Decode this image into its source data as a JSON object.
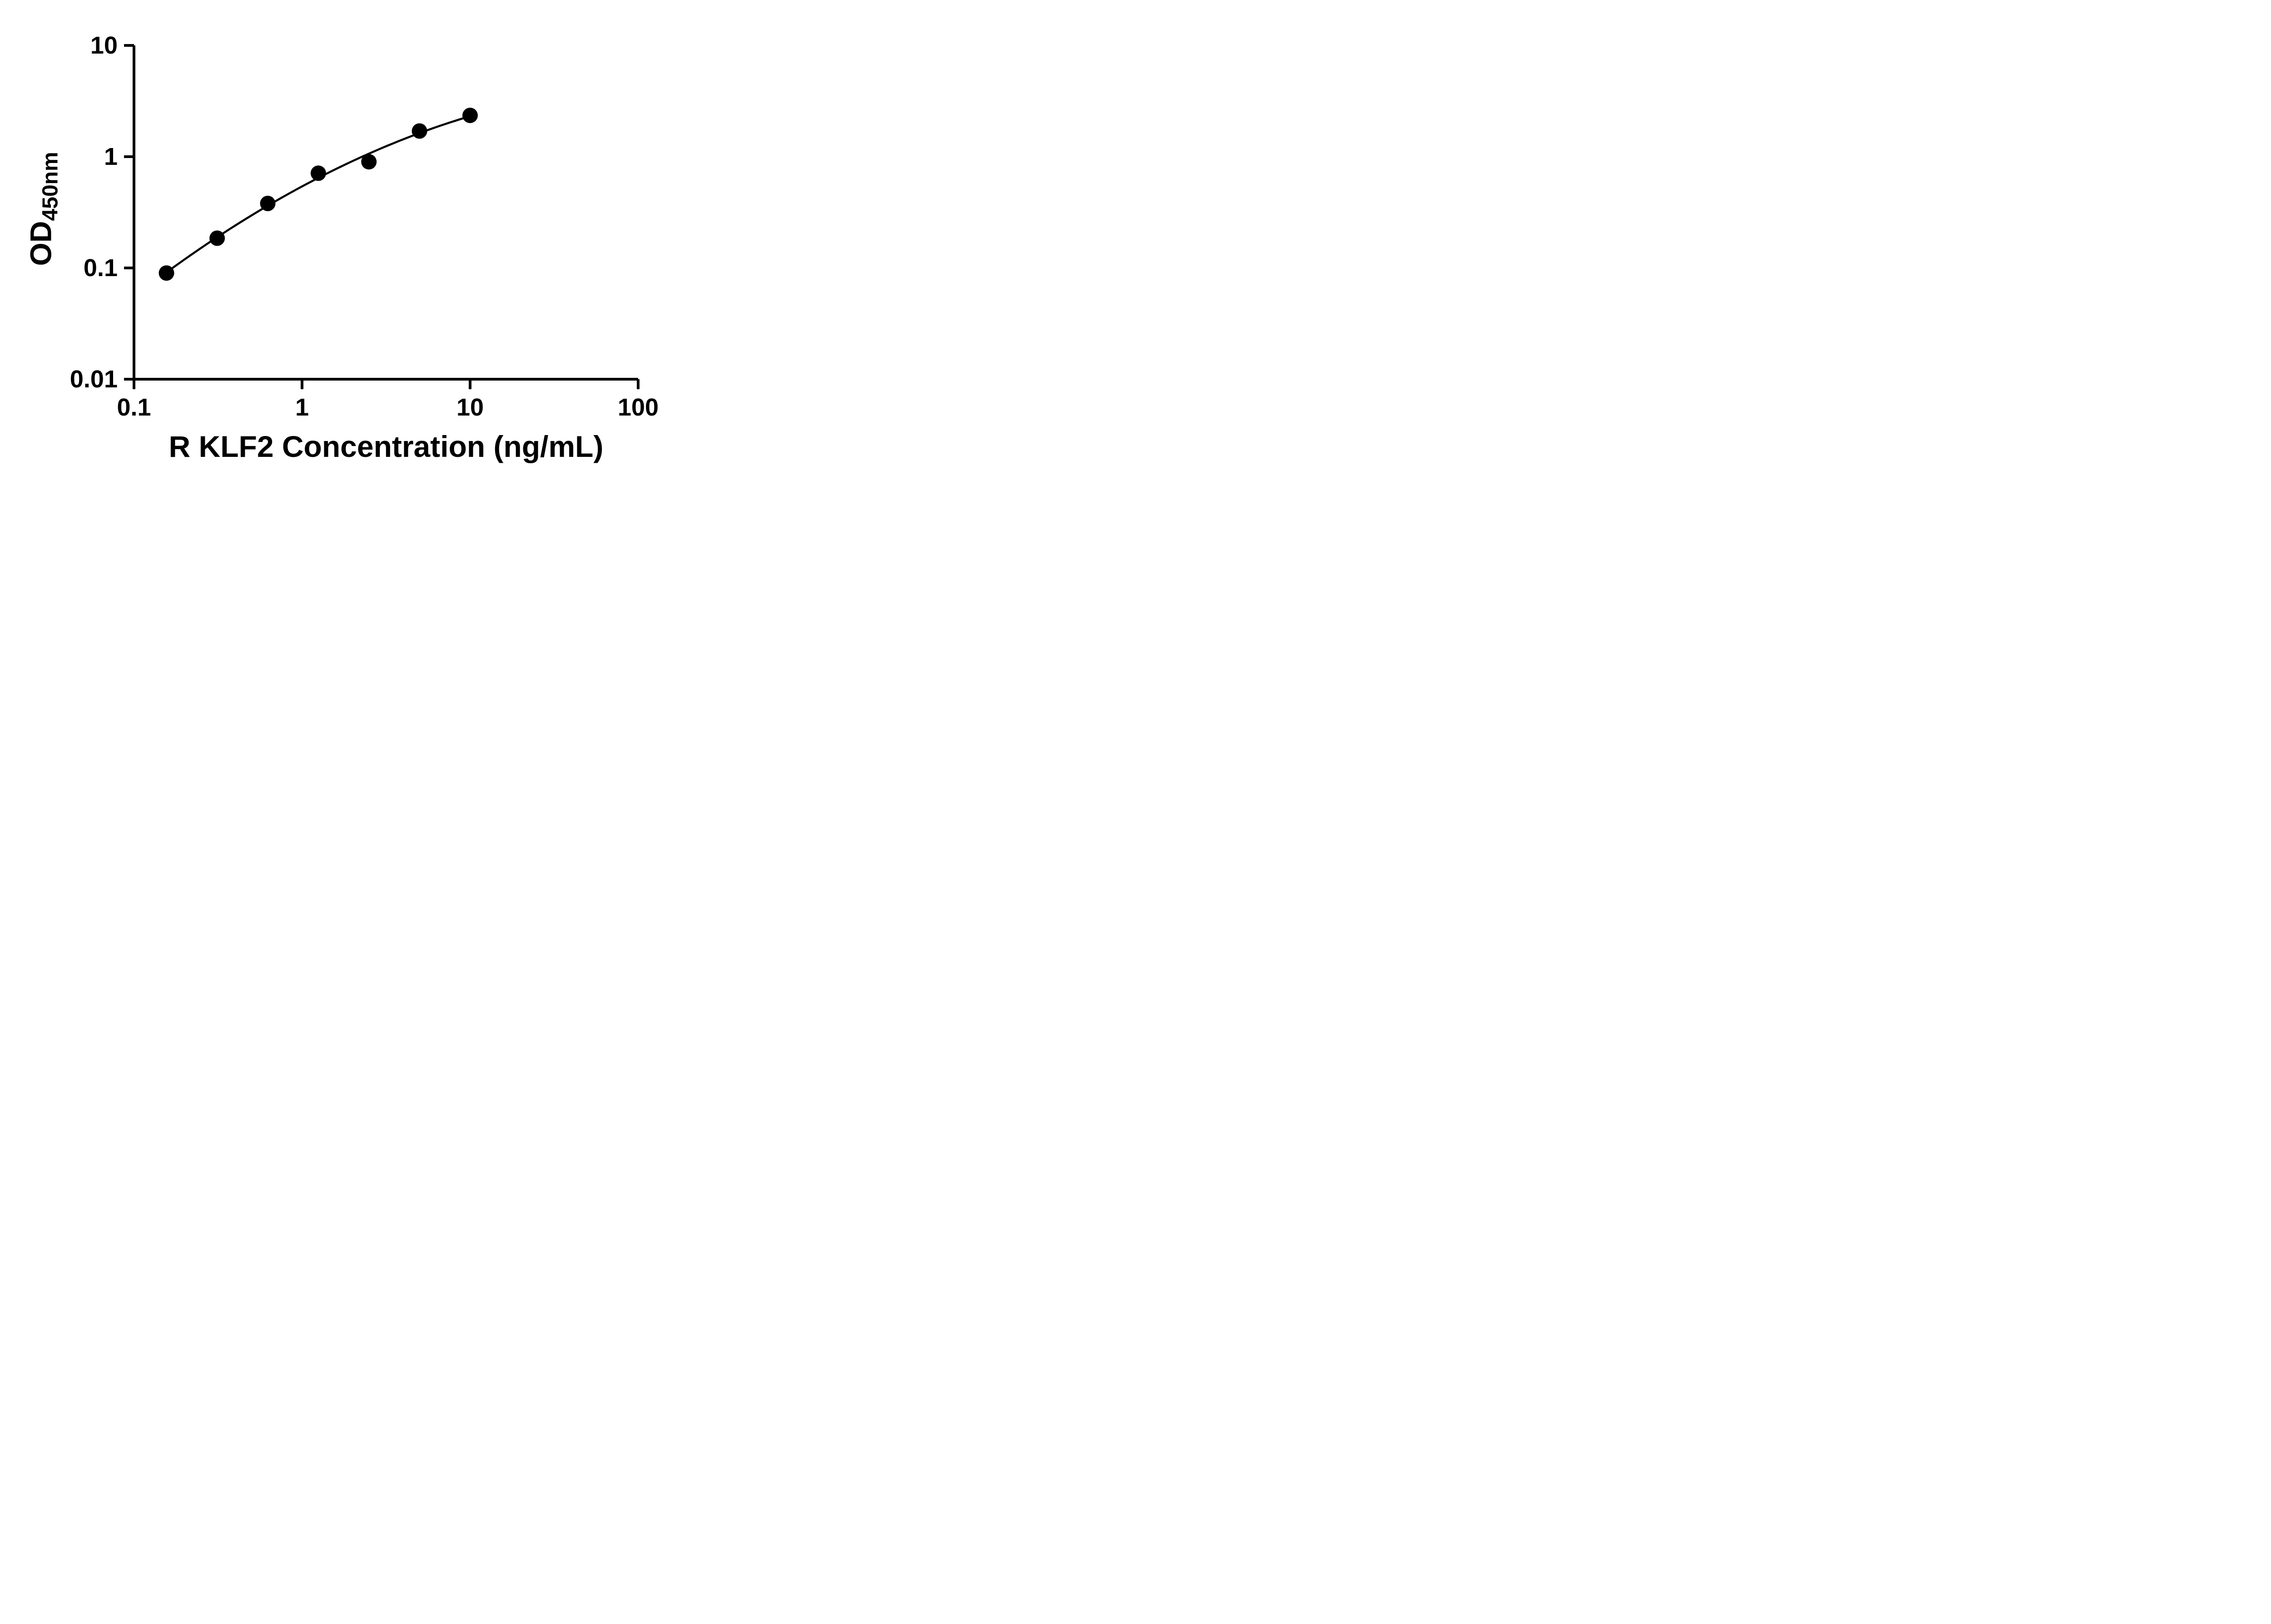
{
  "figure": {
    "background": "#ffffff"
  },
  "chart_data": {
    "type": "scatter",
    "subtype": "ELISA standard curve with fitted line, log-log axes",
    "title": "",
    "xlabel": "R KLF2 Concentration (ng/mL)",
    "ylabel": "OD450nm",
    "ylabel_main": "OD",
    "ylabel_sub": "450nm",
    "x_scale": "log10",
    "y_scale": "log10",
    "xlim": [
      0.1,
      100
    ],
    "ylim": [
      0.01,
      10
    ],
    "grid": false,
    "legend": false,
    "x_ticks": [
      {
        "v": 0.1,
        "label": "0.1"
      },
      {
        "v": 1,
        "label": "1"
      },
      {
        "v": 10,
        "label": "10"
      },
      {
        "v": 100,
        "label": "100"
      }
    ],
    "y_ticks": [
      {
        "v": 10,
        "label": "10"
      },
      {
        "v": 1,
        "label": "1"
      },
      {
        "v": 0.1,
        "label": "0.1"
      },
      {
        "v": 0.01,
        "label": "0.01"
      }
    ],
    "points": [
      {
        "x": 0.156,
        "y": 0.09
      },
      {
        "x": 0.3125,
        "y": 0.185
      },
      {
        "x": 0.625,
        "y": 0.38
      },
      {
        "x": 1.25,
        "y": 0.71
      },
      {
        "x": 2.5,
        "y": 0.9
      },
      {
        "x": 5,
        "y": 1.7
      },
      {
        "x": 10,
        "y": 2.35
      }
    ],
    "marker": {
      "shape": "circle",
      "fill": "#000000"
    },
    "curve": {
      "color": "#000000",
      "x_start": 0.15,
      "x_end": 10,
      "fit": "quadratic-in-log-log"
    },
    "colors": {
      "axis": "#000000",
      "text": "#000000",
      "points": "#000000",
      "curve": "#000000"
    }
  }
}
